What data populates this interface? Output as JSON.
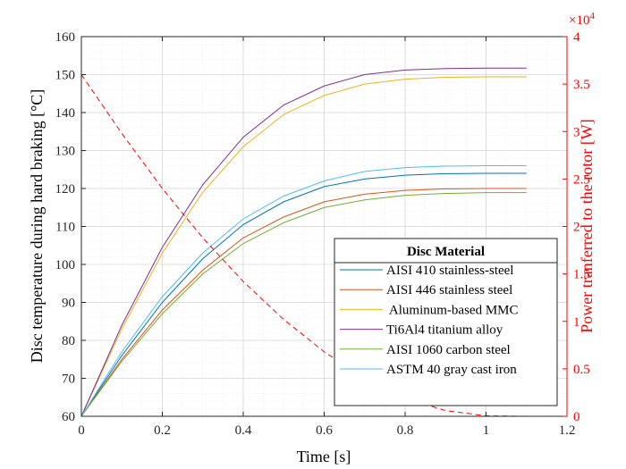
{
  "chart_data": {
    "type": "line",
    "xlabel": "Time [s]",
    "ylabel": "Disc temperature during hard braking [°C]",
    "y2label": "Power tranferred to the rotor [W]",
    "y2_multiplier": "×10",
    "y2_exponent": "4",
    "xlim": [
      0,
      1.2
    ],
    "ylim": [
      60,
      160
    ],
    "y2lim": [
      0,
      4
    ],
    "xticks": [
      0,
      0.2,
      0.4,
      0.6,
      0.8,
      1,
      1.2
    ],
    "xtick_labels": [
      "0",
      "0.2",
      "0.4",
      "0.6",
      "0.8",
      "1",
      "1.2"
    ],
    "yticks": [
      60,
      70,
      80,
      90,
      100,
      110,
      120,
      130,
      140,
      150,
      160
    ],
    "ytick_labels": [
      "60",
      "70",
      "80",
      "90",
      "100",
      "110",
      "120",
      "130",
      "140",
      "150",
      "160"
    ],
    "y2ticks": [
      0,
      0.5,
      1,
      1.5,
      2,
      2.5,
      3,
      3.5,
      4
    ],
    "y2tick_labels": [
      "0",
      "0.5",
      "1",
      "1.5",
      "2",
      "2.5",
      "3",
      "3.5",
      "4"
    ],
    "grid": true,
    "minor_grid": true,
    "legend": {
      "title": "Disc Material",
      "placement": "center-right"
    },
    "x": [
      0,
      0.1,
      0.2,
      0.3,
      0.4,
      0.5,
      0.6,
      0.7,
      0.8,
      0.9,
      1.0,
      1.1
    ],
    "series": [
      {
        "name": "AISI 410 stainless-steel",
        "color": "#0072bd",
        "axis": "left",
        "values": [
          60,
          76,
          90,
          101.5,
          110.5,
          116.5,
          120.5,
          122.5,
          123.5,
          123.9,
          124,
          124
        ]
      },
      {
        "name": "AISI 446 stainless steel",
        "color": "#d95319",
        "axis": "left",
        "values": [
          60,
          75,
          88,
          98.5,
          107,
          112.5,
          116.5,
          118.5,
          119.5,
          119.9,
          120,
          120
        ]
      },
      {
        "name": " Aluminum-based MMC",
        "color": "#edb120",
        "axis": "left",
        "values": [
          60,
          83,
          103,
          119,
          131,
          139.5,
          144.5,
          147.5,
          148.8,
          149.3,
          149.4,
          149.4
        ]
      },
      {
        "name": "Ti6Al4 titanium alloy",
        "color": "#7e2f8e",
        "axis": "left",
        "values": [
          60,
          84,
          104.5,
          121,
          133.5,
          142,
          147,
          150,
          151.2,
          151.6,
          151.7,
          151.7
        ]
      },
      {
        "name": "AISI 1060 carbon steel",
        "color": "#77ac30",
        "axis": "left",
        "values": [
          60,
          74.5,
          87,
          97.5,
          105.5,
          111,
          115,
          117,
          118.2,
          118.7,
          118.9,
          118.9
        ]
      },
      {
        "name": "ASTM 40 gray cast iron",
        "color": "#4dbeee",
        "axis": "left",
        "values": [
          60,
          77,
          91.5,
          103,
          112,
          118,
          122,
          124.5,
          125.5,
          125.9,
          126,
          126
        ]
      },
      {
        "color": "#ff0000",
        "axis": "right",
        "dashed": true,
        "values": [
          3.6,
          2.98,
          2.4,
          1.88,
          1.42,
          1.02,
          0.68,
          0.4,
          0.19,
          0.06,
          0.005,
          0
        ]
      }
    ]
  }
}
